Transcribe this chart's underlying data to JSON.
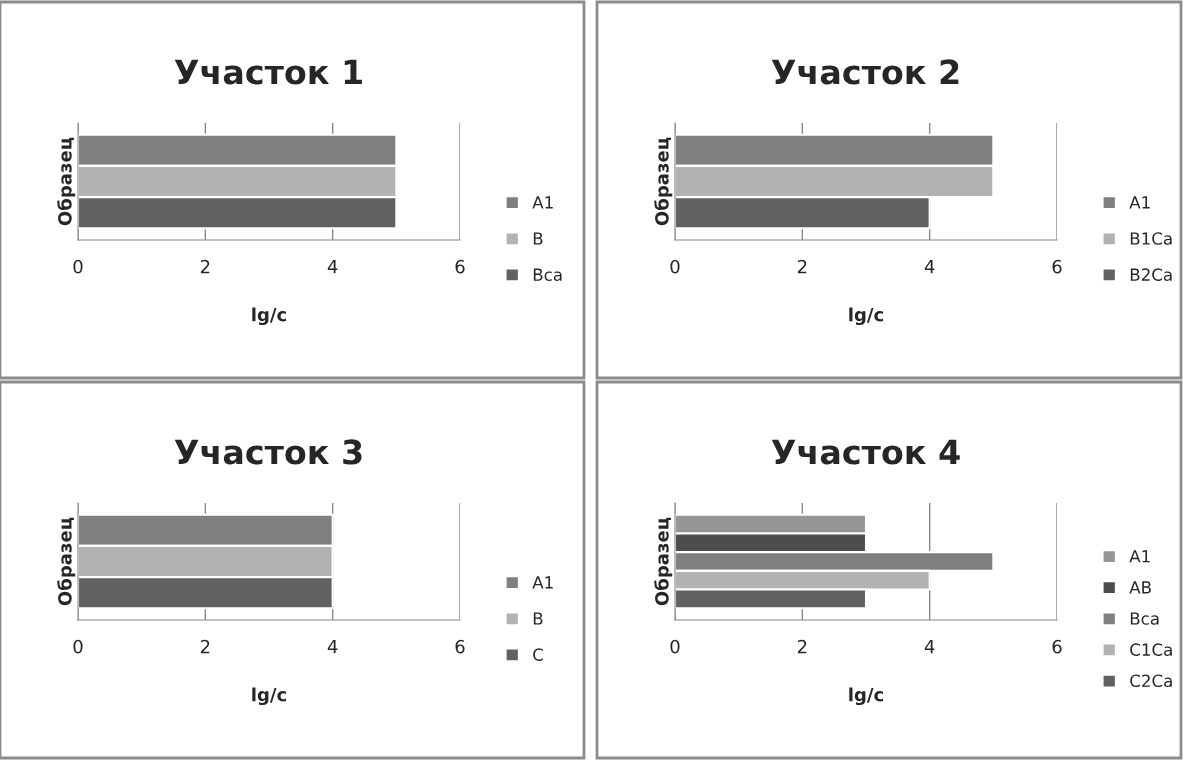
{
  "chart_data": [
    {
      "type": "bar",
      "orientation": "horizontal",
      "title": "Участок 1",
      "xlabel": "lg/c",
      "ylabel": "Образец",
      "categories": [
        null
      ],
      "xlim": [
        0,
        6
      ],
      "xticks": [
        0,
        2,
        4,
        6
      ],
      "grid": "x",
      "legend": "right",
      "tick_labels": "x",
      "series": [
        {
          "name": "A1",
          "color": "#7f7f7f",
          "values": [
            5
          ]
        },
        {
          "name": "B",
          "color": "#b2b2b2",
          "values": [
            5
          ]
        },
        {
          "name": "Bca",
          "color": "#616161",
          "values": [
            5
          ]
        }
      ]
    },
    {
      "type": "bar",
      "orientation": "horizontal",
      "title": "Участок 2",
      "xlabel": "lg/c",
      "ylabel": "Образец",
      "categories": [
        null
      ],
      "xlim": [
        0,
        6
      ],
      "xticks": [
        0,
        2,
        4,
        6
      ],
      "grid": "x",
      "legend": "right",
      "tick_labels": "x",
      "series": [
        {
          "name": "A1",
          "color": "#7f7f7f",
          "values": [
            5
          ]
        },
        {
          "name": "B1Ca",
          "color": "#b2b2b2",
          "values": [
            5
          ]
        },
        {
          "name": "B2Ca",
          "color": "#616161",
          "values": [
            4
          ]
        }
      ]
    },
    {
      "type": "bar",
      "orientation": "horizontal",
      "title": "Участок 3",
      "xlabel": "lg/c",
      "ylabel": "Образец",
      "categories": [
        null
      ],
      "xlim": [
        0,
        6
      ],
      "xticks": [
        0,
        2,
        4,
        6
      ],
      "grid": "x",
      "legend": "right",
      "tick_labels": "x",
      "series": [
        {
          "name": "A1",
          "color": "#7f7f7f",
          "values": [
            4
          ]
        },
        {
          "name": "B",
          "color": "#b2b2b2",
          "values": [
            4
          ]
        },
        {
          "name": "C",
          "color": "#616161",
          "values": [
            4
          ]
        }
      ]
    },
    {
      "type": "bar",
      "orientation": "horizontal",
      "title": "Участок 4",
      "xlabel": "lg/c",
      "ylabel": "Образец",
      "categories": [
        null
      ],
      "xlim": [
        0,
        6
      ],
      "xticks": [
        0,
        2,
        4,
        6
      ],
      "grid": "x",
      "legend": "right",
      "tick_labels": "x",
      "series": [
        {
          "name": "A1",
          "color": "#969696",
          "values": [
            3
          ]
        },
        {
          "name": "AB",
          "color": "#4d4d4d",
          "values": [
            3
          ]
        },
        {
          "name": "Bca",
          "color": "#7f7f7f",
          "values": [
            5
          ]
        },
        {
          "name": "C1Ca",
          "color": "#b2b2b2",
          "values": [
            4
          ]
        },
        {
          "name": "C2Ca",
          "color": "#616161",
          "values": [
            3
          ]
        }
      ]
    }
  ]
}
